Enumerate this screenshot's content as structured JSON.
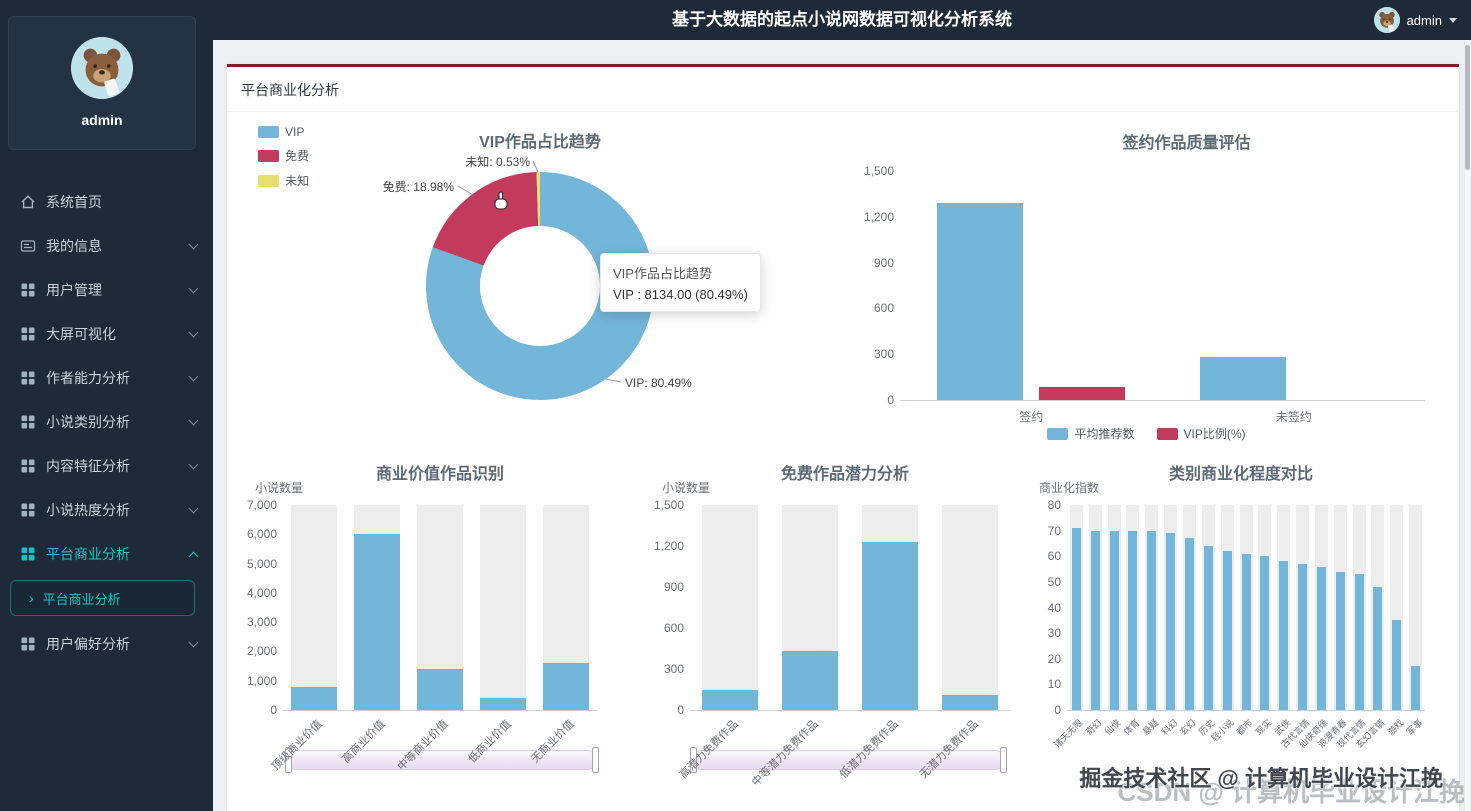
{
  "header": {
    "title": "基于大数据的起点小说网数据可视化分析系统",
    "user": "admin"
  },
  "sidebar": {
    "profile_name": "admin",
    "items": [
      {
        "label": "系统首页",
        "expandable": false
      },
      {
        "label": "我的信息",
        "expandable": true
      },
      {
        "label": "用户管理",
        "expandable": true
      },
      {
        "label": "大屏可视化",
        "expandable": true
      },
      {
        "label": "作者能力分析",
        "expandable": true
      },
      {
        "label": "小说类别分析",
        "expandable": true
      },
      {
        "label": "内容特征分析",
        "expandable": true
      },
      {
        "label": "小说热度分析",
        "expandable": true
      },
      {
        "label": "平台商业分析",
        "expandable": true,
        "expanded": true,
        "active": true
      },
      {
        "label": "用户偏好分析",
        "expandable": true
      }
    ],
    "submenu_label": "平台商业分析",
    "submenu_arrow": "›"
  },
  "panel": {
    "title": "平台商业化分析"
  },
  "watermark": {
    "front": "掘金技术社区 @ 计算机毕业设计江挽",
    "back": "CSDN @ 计算机毕业设计江挽"
  },
  "colors": {
    "accent": "#15c5c5",
    "bar_blue": "#74b6d9",
    "bar_red": "#c23a5c",
    "pie_yellow": "#e7df70",
    "panel_top_line": "#77202a"
  },
  "chart_data": [
    {
      "id": "vip-trend",
      "type": "pie",
      "title": "VIP作品占比趋势",
      "legend_position": "top-left",
      "slices": [
        {
          "name": "VIP",
          "pct": 80.49,
          "color": "#74b6d9",
          "label": "VIP: 80.49%"
        },
        {
          "name": "免费",
          "pct": 18.98,
          "color": "#c23a5c",
          "label": "免费: 18.98%"
        },
        {
          "name": "未知",
          "pct": 0.53,
          "color": "#e7df70",
          "label": "未知: 0.53%"
        }
      ],
      "tooltip": {
        "title": "VIP作品占比趋势",
        "line": "VIP : 8134.00 (80.49%)"
      }
    },
    {
      "id": "quality",
      "type": "bar",
      "title": "签约作品质量评估",
      "categories": [
        "签约",
        "未签约"
      ],
      "series": [
        {
          "name": "平均推荐数",
          "color": "#74b6d9",
          "values": [
            1290,
            280
          ]
        },
        {
          "name": "VIP比例(%)",
          "color": "#c23a5c",
          "values": [
            88,
            0
          ]
        }
      ],
      "ymax": 1500,
      "ystep": 300,
      "comma": true,
      "legend_position": "bottom"
    },
    {
      "id": "commercial-value",
      "type": "bar",
      "title": "商业价值作品识别",
      "ylabel": "小说数量",
      "categories": [
        "顶级商业价值",
        "高商业价值",
        "中等商业价值",
        "低商业价值",
        "无商业价值"
      ],
      "values": [
        800,
        6000,
        1400,
        400,
        1600
      ],
      "color": "#74b6d9",
      "ymax": 7000,
      "ystep": 1000,
      "comma": true,
      "show_background": true,
      "datazoom": true
    },
    {
      "id": "free-potential",
      "type": "bar",
      "title": "免费作品潜力分析",
      "ylabel": "小说数量",
      "categories": [
        "高潜力免费作品",
        "中等潜力免费作品",
        "低潜力免费作品",
        "无潜力免费作品"
      ],
      "values": [
        150,
        430,
        1230,
        110
      ],
      "color": "#74b6d9",
      "ymax": 1500,
      "ystep": 300,
      "comma": true,
      "show_background": true,
      "datazoom": true
    },
    {
      "id": "category-compare",
      "type": "bar",
      "title": "类别商业化程度对比",
      "ylabel": "商业化指数",
      "categories": [
        "诸天无限",
        "奇幻",
        "仙侠",
        "体育",
        "悬疑",
        "科幻",
        "玄幻",
        "历史",
        "轻小说",
        "都市",
        "现实",
        "武侠",
        "古代言情",
        "仙侠奇缘",
        "浪漫青春",
        "现代言情",
        "玄幻言情",
        "游戏",
        "军事"
      ],
      "values": [
        71,
        70,
        70,
        70,
        70,
        69,
        67,
        64,
        62,
        61,
        60,
        58,
        57,
        56,
        54,
        53,
        48,
        35,
        17
      ],
      "color": "#74b6d9",
      "ymax": 80,
      "ystep": 10,
      "comma": false,
      "show_background": true
    }
  ]
}
